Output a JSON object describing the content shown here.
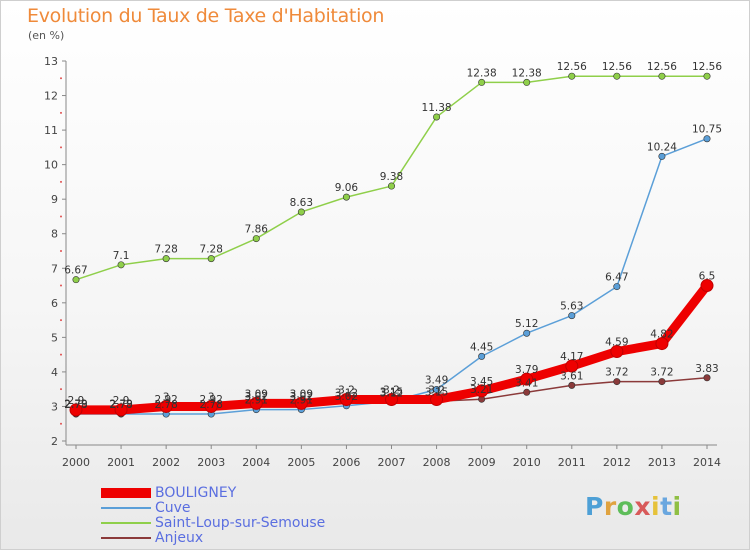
{
  "header": {
    "title": "Evolution du Taux de Taxe d'Habitation",
    "subtitle": "(en %)"
  },
  "chart_data": {
    "type": "line",
    "title": "Evolution du Taux de Taxe d'Habitation",
    "ylabel": "(en %)",
    "xlabel": "",
    "x": [
      "2000",
      "2001",
      "2002",
      "2003",
      "2004",
      "2005",
      "2006",
      "2007",
      "2008",
      "2009",
      "2010",
      "2011",
      "2012",
      "2013",
      "2014"
    ],
    "ylim": [
      2,
      13
    ],
    "yticks": [
      2,
      3,
      4,
      5,
      6,
      7,
      8,
      9,
      10,
      11,
      12,
      13
    ],
    "grid": false,
    "legend_position": "bottom-left",
    "series": [
      {
        "name": "BOULIGNEY",
        "color": "#ee0000",
        "values": [
          2.9,
          2.9,
          3.0,
          3.0,
          3.09,
          3.09,
          3.2,
          3.2,
          3.2,
          3.45,
          3.79,
          4.17,
          4.59,
          4.82,
          6.5
        ],
        "labels": [
          "2.9",
          "2.9",
          "3",
          "3",
          "3.09",
          "3.09",
          "3.2",
          "3.2",
          "3.2",
          "3.45",
          "3.79",
          "4.17",
          "4.59",
          "4.82",
          "6.5"
        ]
      },
      {
        "name": "Cuve",
        "color": "#5b9fd8",
        "values": [
          2.78,
          2.78,
          2.78,
          2.78,
          2.91,
          2.91,
          3.02,
          3.15,
          3.49,
          4.45,
          5.12,
          5.63,
          6.47,
          10.24,
          10.75
        ],
        "labels": [
          "2.78",
          "2.78",
          "2.78",
          "2.78",
          "2.91",
          "2.91",
          "3.02",
          "3.15",
          "3.49",
          "4.45",
          "5.12",
          "5.63",
          "6.47",
          "10.24",
          "10.75"
        ]
      },
      {
        "name": "Saint-Loup-sur-Semouse",
        "color": "#8fcf4a",
        "values": [
          6.67,
          7.1,
          7.28,
          7.28,
          7.86,
          8.63,
          9.06,
          9.38,
          11.38,
          12.38,
          12.38,
          12.56,
          12.56,
          12.56,
          12.56
        ],
        "labels": [
          "6.67",
          "7.1",
          "7.28",
          "7.28",
          "7.86",
          "8.63",
          "9.06",
          "9.38",
          "11.38",
          "12.38",
          "12.38",
          "12.56",
          "12.56",
          "12.56",
          "12.56"
        ]
      },
      {
        "name": "Anjeux",
        "color": "#8b3a3a",
        "values": [
          2.79,
          2.79,
          2.92,
          2.92,
          3.02,
          3.02,
          3.12,
          3.12,
          3.15,
          3.21,
          3.41,
          3.61,
          3.72,
          3.72,
          3.83
        ],
        "labels": [
          "2.79",
          "2.79",
          "2.92",
          "2.92",
          "3.02",
          "3.02",
          "3.12",
          "3.12",
          "3.15",
          "3.21",
          "3.41",
          "3.61",
          "3.72",
          "3.72",
          "3.83"
        ]
      }
    ]
  },
  "brand": {
    "name": "Proxiti",
    "letters": [
      "P",
      "r",
      "o",
      "x",
      "i",
      "t",
      "i"
    ]
  }
}
